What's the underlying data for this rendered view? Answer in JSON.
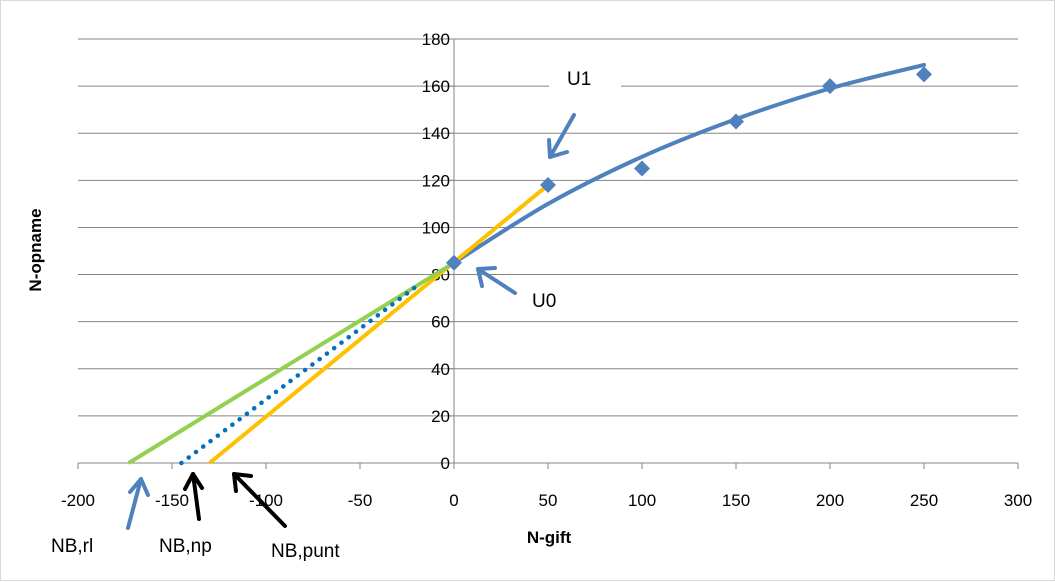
{
  "chart_data": {
    "type": "scatter",
    "title": "",
    "xlabel": "N-gift",
    "ylabel": "N-opname",
    "xlim": [
      -200,
      300
    ],
    "ylim": [
      0,
      180
    ],
    "x_ticks": [
      -200,
      -150,
      -100,
      -50,
      0,
      50,
      100,
      150,
      200,
      250,
      300
    ],
    "y_ticks": [
      0,
      20,
      40,
      60,
      80,
      100,
      120,
      140,
      160,
      180
    ],
    "grid": "horizontal",
    "legend": "none",
    "series": [
      {
        "kind": "points",
        "color": "#4f81bd",
        "marker": "diamond",
        "x": [
          0,
          50,
          100,
          150,
          200,
          250
        ],
        "y": [
          85,
          118,
          125,
          145,
          160,
          165
        ]
      },
      {
        "kind": "curve",
        "color": "#4f81bd",
        "style": "solid",
        "x": [
          0,
          50,
          100,
          150,
          200,
          250
        ],
        "y": [
          85,
          110,
          130,
          146,
          159,
          169
        ]
      },
      {
        "kind": "line",
        "color": "#ffc000",
        "style": "solid",
        "x": [
          -130,
          50
        ],
        "y": [
          0,
          118
        ]
      },
      {
        "kind": "line",
        "color": "#92d050",
        "style": "solid",
        "x": [
          -173,
          0
        ],
        "y": [
          0,
          85
        ]
      },
      {
        "kind": "line",
        "color": "#0070c0",
        "style": "dotted",
        "x": [
          -145,
          -20
        ],
        "y": [
          0,
          75
        ]
      }
    ],
    "annotations": [
      {
        "text": "U1",
        "arrow_color": "#4f81bd"
      },
      {
        "text": "U0",
        "arrow_color": "#4f81bd"
      },
      {
        "text": "NB,rl",
        "arrow_color": "#4f81bd"
      },
      {
        "text": "NB,np",
        "arrow_color": "#000000"
      },
      {
        "text": "NB,punt",
        "arrow_color": "#000000"
      }
    ]
  }
}
